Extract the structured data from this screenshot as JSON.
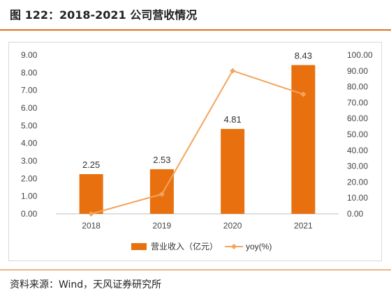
{
  "figure_title": "图 122：2018-2021 公司营收情况",
  "source_note": "资料来源：Wind，天风证券研究所",
  "colors": {
    "bar": "#E8700E",
    "line": "#F4A45E",
    "accent": "#E0711A"
  },
  "chart_data": {
    "type": "bar",
    "categories": [
      "2018",
      "2019",
      "2020",
      "2021"
    ],
    "series": [
      {
        "name": "营业收入（亿元）",
        "type": "bar",
        "axis": "left",
        "values": [
          2.25,
          2.53,
          4.81,
          8.43
        ],
        "labels": [
          "2.25",
          "2.53",
          "4.81",
          "8.43"
        ]
      },
      {
        "name": "yoy(%)",
        "type": "line",
        "axis": "right",
        "values": [
          0.0,
          12.4,
          90.1,
          75.3
        ]
      }
    ],
    "y_left": {
      "ylim": [
        0,
        9
      ],
      "ticks": [
        "0.00",
        "1.00",
        "2.00",
        "3.00",
        "4.00",
        "5.00",
        "6.00",
        "7.00",
        "8.00",
        "9.00"
      ]
    },
    "y_right": {
      "ylim": [
        0,
        100
      ],
      "ticks": [
        "0.00",
        "10.00",
        "20.00",
        "30.00",
        "40.00",
        "50.00",
        "60.00",
        "70.00",
        "80.00",
        "90.00",
        "100.00"
      ]
    },
    "grid": false,
    "legend_position": "bottom"
  }
}
